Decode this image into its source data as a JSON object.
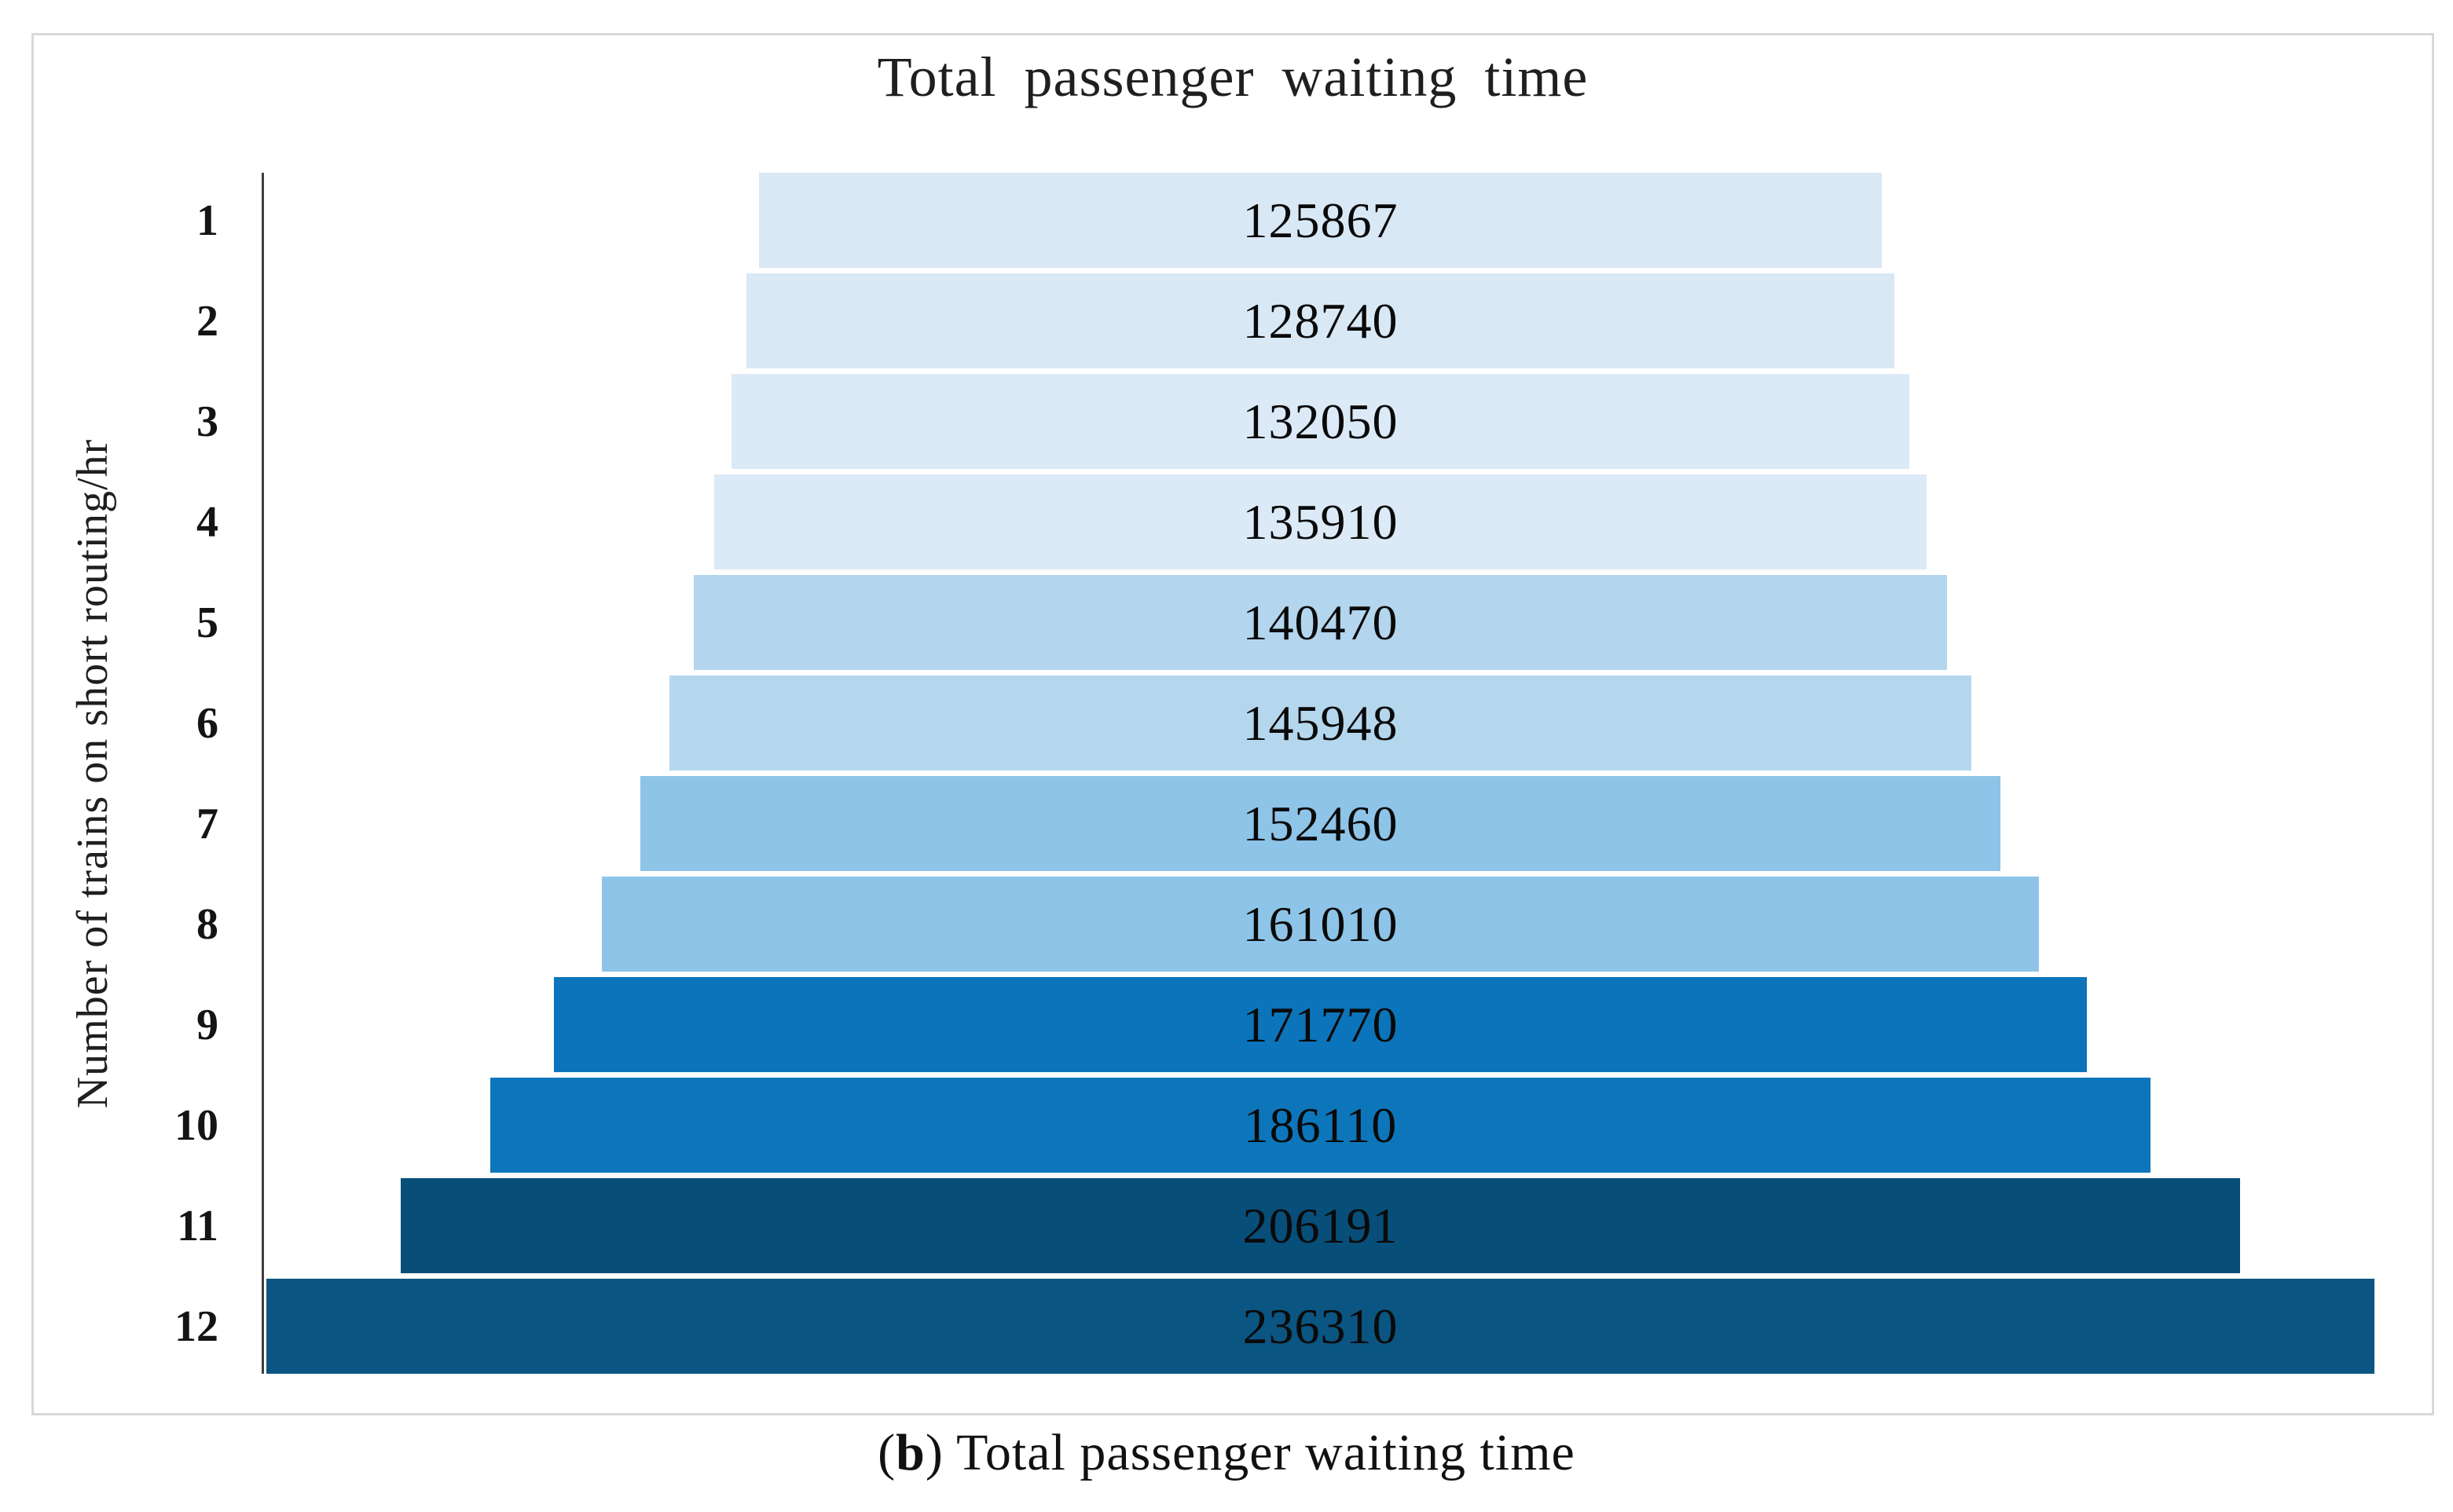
{
  "title": "Total passenger waiting time",
  "y_axis_label": "Number of trains on short routing/hr",
  "caption": {
    "prefix": "(",
    "bold_part": "b",
    "suffix": ") Total passenger waiting time"
  },
  "colors": {
    "axis_line": "#3f3f3f",
    "frame_border": "#d8d8d8",
    "label_text": "#0a0a0a",
    "background": "#ffffff"
  },
  "chart_data": {
    "type": "bar",
    "orientation": "horizontal-centered-funnel",
    "title": "Total passenger waiting time",
    "xlabel": "",
    "ylabel": "Number of trains on short routing/hr",
    "grid": false,
    "legend": "none",
    "data_labels_position": "center",
    "categories": [
      "1",
      "2",
      "3",
      "4",
      "5",
      "6",
      "7",
      "8",
      "9",
      "10",
      "11",
      "12"
    ],
    "values": [
      125867,
      128740,
      132050,
      135910,
      140470,
      145948,
      152460,
      161010,
      171770,
      186110,
      206191,
      236310
    ],
    "x_scale_max": 236830,
    "bar_colors": [
      "#d9e8f5",
      "#d9e8f5",
      "#dbeaf6",
      "#dbeaf6",
      "#b3d5ee",
      "#b5d7ee",
      "#8ec4e8",
      "#8ec4e8",
      "#0c74ba",
      "#0d76bb",
      "#074e79",
      "#0a5581"
    ]
  }
}
